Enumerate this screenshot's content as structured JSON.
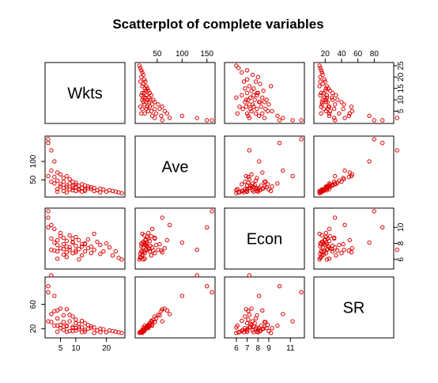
{
  "chart_data": {
    "type": "scatter",
    "title": "Scatterplot of complete variables",
    "variables": [
      "Wkts",
      "Ave",
      "Econ",
      "SR"
    ],
    "point_color": "#e00000",
    "ranges": {
      "Wkts": [
        1,
        25
      ],
      "Ave": [
        12,
        160
      ],
      "Econ": [
        5.2,
        12.0
      ],
      "SR": [
        10,
        100
      ]
    },
    "ticks": {
      "Wkts": [
        5,
        10,
        20
      ],
      "Ave": [
        50,
        100,
        150
      ],
      "Econ": [
        6,
        7,
        8,
        9,
        11
      ],
      "SR": [
        20,
        40,
        60,
        80
      ]
    },
    "tick_labels": {
      "Wkts_bottom": [
        "5",
        "10",
        "20"
      ],
      "Wkts_right": [
        "5",
        "10",
        "15",
        "20",
        "25"
      ],
      "Ave_top": [
        "50",
        "100",
        "150"
      ],
      "Ave_left": [
        "50",
        "100"
      ],
      "Econ_bottom": [
        "6",
        "7",
        "8",
        "9",
        "11"
      ],
      "Econ_right": [
        "6",
        "8",
        "10"
      ],
      "SR_top": [
        "20",
        "40",
        "60",
        "80"
      ],
      "SR_left": [
        "20",
        "60"
      ]
    },
    "observations": [
      {
        "Wkts": 25,
        "Ave": 14,
        "Econ": 6.0,
        "SR": 13
      },
      {
        "Wkts": 24,
        "Ave": 16,
        "Econ": 6.2,
        "SR": 14
      },
      {
        "Wkts": 23,
        "Ave": 18,
        "Econ": 7.0,
        "SR": 15
      },
      {
        "Wkts": 22,
        "Ave": 20,
        "Econ": 6.5,
        "SR": 16
      },
      {
        "Wkts": 21,
        "Ave": 22,
        "Econ": 7.5,
        "SR": 17
      },
      {
        "Wkts": 20,
        "Ave": 18,
        "Econ": 8.0,
        "SR": 14
      },
      {
        "Wkts": 19,
        "Ave": 24,
        "Econ": 7.0,
        "SR": 19
      },
      {
        "Wkts": 18,
        "Ave": 26,
        "Econ": 7.8,
        "SR": 20
      },
      {
        "Wkts": 17,
        "Ave": 22,
        "Econ": 8.2,
        "SR": 17
      },
      {
        "Wkts": 16,
        "Ave": 28,
        "Econ": 7.2,
        "SR": 22
      },
      {
        "Wkts": 15,
        "Ave": 25,
        "Econ": 6.8,
        "SR": 21
      },
      {
        "Wkts": 15,
        "Ave": 30,
        "Econ": 7.6,
        "SR": 24
      },
      {
        "Wkts": 14,
        "Ave": 27,
        "Econ": 8.5,
        "SR": 20
      },
      {
        "Wkts": 14,
        "Ave": 32,
        "Econ": 7.4,
        "SR": 26
      },
      {
        "Wkts": 13,
        "Ave": 24,
        "Econ": 8.0,
        "SR": 18
      },
      {
        "Wkts": 13,
        "Ave": 35,
        "Econ": 7.0,
        "SR": 29
      },
      {
        "Wkts": 12,
        "Ave": 28,
        "Econ": 7.9,
        "SR": 22
      },
      {
        "Wkts": 12,
        "Ave": 38,
        "Econ": 6.5,
        "SR": 33
      },
      {
        "Wkts": 11,
        "Ave": 26,
        "Econ": 8.4,
        "SR": 19
      },
      {
        "Wkts": 11,
        "Ave": 34,
        "Econ": 7.3,
        "SR": 28
      },
      {
        "Wkts": 10,
        "Ave": 30,
        "Econ": 8.8,
        "SR": 21
      },
      {
        "Wkts": 10,
        "Ave": 42,
        "Econ": 7.1,
        "SR": 35
      },
      {
        "Wkts": 10,
        "Ave": 36,
        "Econ": 7.7,
        "SR": 29
      },
      {
        "Wkts": 9,
        "Ave": 28,
        "Econ": 8.1,
        "SR": 21
      },
      {
        "Wkts": 9,
        "Ave": 45,
        "Econ": 6.8,
        "SR": 40
      },
      {
        "Wkts": 9,
        "Ave": 33,
        "Econ": 8.6,
        "SR": 23
      },
      {
        "Wkts": 8,
        "Ave": 40,
        "Econ": 7.5,
        "SR": 32
      },
      {
        "Wkts": 8,
        "Ave": 24,
        "Econ": 9.0,
        "SR": 16
      },
      {
        "Wkts": 8,
        "Ave": 52,
        "Econ": 7.2,
        "SR": 43
      },
      {
        "Wkts": 7,
        "Ave": 35,
        "Econ": 8.3,
        "SR": 25
      },
      {
        "Wkts": 7,
        "Ave": 60,
        "Econ": 6.9,
        "SR": 52
      },
      {
        "Wkts": 7,
        "Ave": 30,
        "Econ": 7.6,
        "SR": 24
      },
      {
        "Wkts": 6,
        "Ave": 45,
        "Econ": 8.7,
        "SR": 31
      },
      {
        "Wkts": 6,
        "Ave": 28,
        "Econ": 7.3,
        "SR": 23
      },
      {
        "Wkts": 6,
        "Ave": 55,
        "Econ": 7.9,
        "SR": 42
      },
      {
        "Wkts": 5,
        "Ave": 38,
        "Econ": 8.9,
        "SR": 26
      },
      {
        "Wkts": 5,
        "Ave": 65,
        "Econ": 7.4,
        "SR": 53
      },
      {
        "Wkts": 5,
        "Ave": 32,
        "Econ": 9.3,
        "SR": 21
      },
      {
        "Wkts": 4,
        "Ave": 48,
        "Econ": 7.8,
        "SR": 37
      },
      {
        "Wkts": 4,
        "Ave": 70,
        "Econ": 8.4,
        "SR": 50
      },
      {
        "Wkts": 4,
        "Ave": 25,
        "Econ": 6.1,
        "SR": 25
      },
      {
        "Wkts": 3,
        "Ave": 58,
        "Econ": 7.1,
        "SR": 49
      },
      {
        "Wkts": 3,
        "Ave": 40,
        "Econ": 9.8,
        "SR": 25
      },
      {
        "Wkts": 3,
        "Ave": 100,
        "Econ": 8.1,
        "SR": 74
      },
      {
        "Wkts": 2,
        "Ave": 75,
        "Econ": 10.3,
        "SR": 44
      },
      {
        "Wkts": 2,
        "Ave": 130,
        "Econ": 7.2,
        "SR": 108
      },
      {
        "Wkts": 2,
        "Ave": 45,
        "Econ": 8.6,
        "SR": 31
      },
      {
        "Wkts": 1,
        "Ave": 150,
        "Econ": 10.0,
        "SR": 90
      },
      {
        "Wkts": 1,
        "Ave": 160,
        "Econ": 12.0,
        "SR": 80
      },
      {
        "Wkts": 1,
        "Ave": 60,
        "Econ": 11.2,
        "SR": 32
      },
      {
        "Wkts": 11,
        "Ave": 22,
        "Econ": 6.0,
        "SR": 22
      },
      {
        "Wkts": 16,
        "Ave": 20,
        "Econ": 9.2,
        "SR": 13
      },
      {
        "Wkts": 18,
        "Ave": 16,
        "Econ": 6.7,
        "SR": 14
      },
      {
        "Wkts": 13,
        "Ave": 20,
        "Econ": 7.9,
        "SR": 15
      },
      {
        "Wkts": 9,
        "Ave": 22,
        "Econ": 8.2,
        "SR": 16
      },
      {
        "Wkts": 6,
        "Ave": 20,
        "Econ": 6.6,
        "SR": 18
      },
      {
        "Wkts": 4,
        "Ave": 18,
        "Econ": 7.0,
        "SR": 15
      },
      {
        "Wkts": 7,
        "Ave": 16,
        "Econ": 6.3,
        "SR": 15
      },
      {
        "Wkts": 12,
        "Ave": 18,
        "Econ": 7.6,
        "SR": 14
      },
      {
        "Wkts": 10,
        "Ave": 20,
        "Econ": 6.9,
        "SR": 17
      }
    ]
  }
}
